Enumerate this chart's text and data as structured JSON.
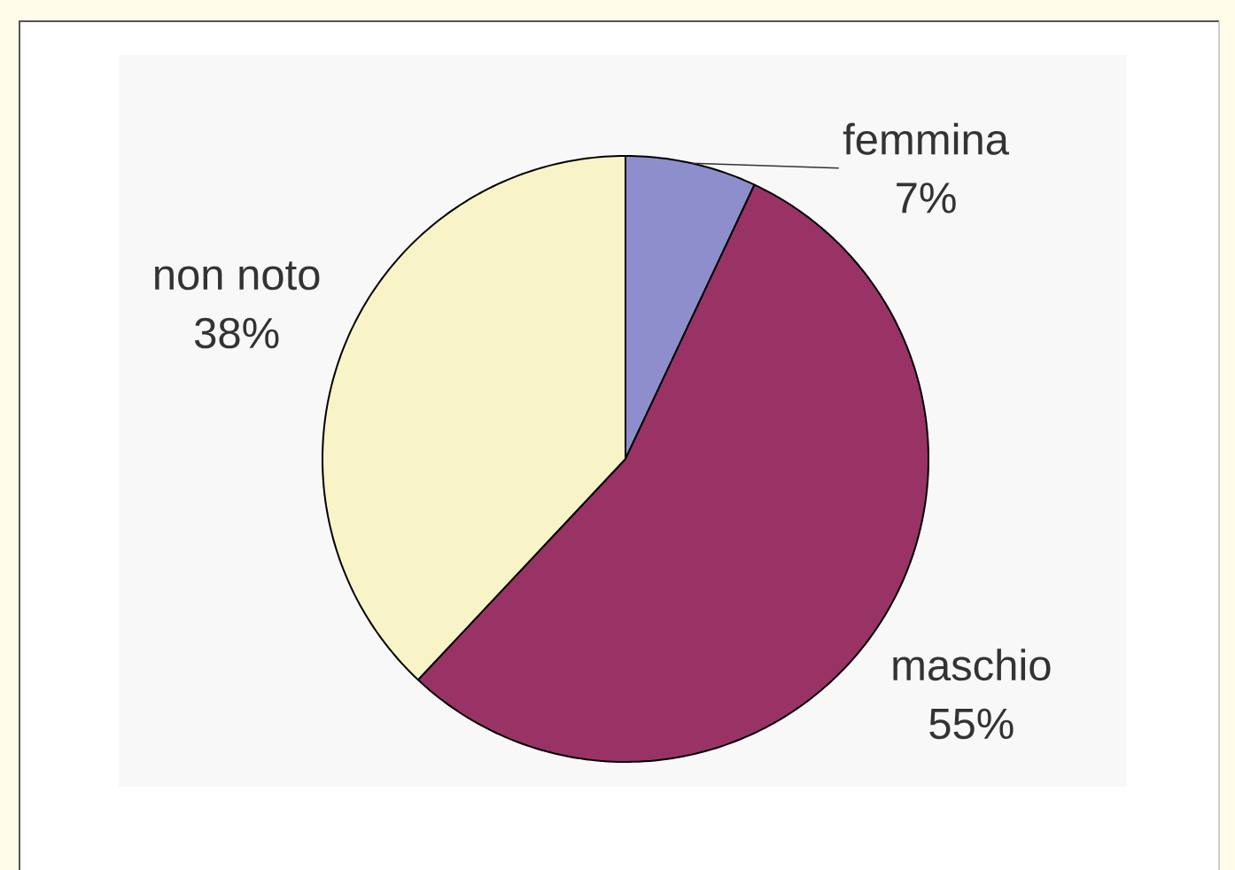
{
  "chart_data": {
    "type": "pie",
    "categories": [
      "femmina",
      "maschio",
      "non noto"
    ],
    "values": [
      7,
      55,
      38
    ],
    "value_labels": [
      "7%",
      "55%",
      "38%"
    ],
    "colors": [
      "#8e8ecc",
      "#993366",
      "#f8f4c8"
    ]
  }
}
